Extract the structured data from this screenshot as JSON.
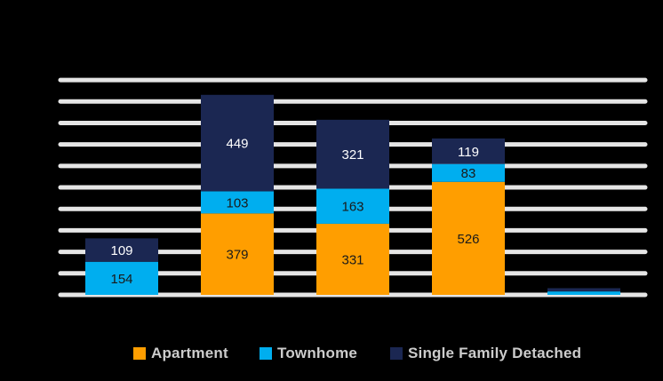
{
  "chart_data": {
    "type": "bar",
    "stacked": true,
    "categories": [
      "",
      "",
      "",
      "",
      ""
    ],
    "series": [
      {
        "name": "Apartment",
        "color": "#FF9E00",
        "values": [
          0,
          379,
          331,
          526,
          0
        ]
      },
      {
        "name": "Townhome",
        "color": "#00AEEF",
        "values": [
          154,
          103,
          163,
          83,
          16
        ]
      },
      {
        "name": "Single Family Detached",
        "color": "#1B2752",
        "values": [
          109,
          449,
          321,
          119,
          15
        ]
      }
    ],
    "data_labels": [
      [
        "",
        "379",
        "331",
        "526",
        ""
      ],
      [
        "154",
        "103",
        "163",
        "83",
        ""
      ],
      [
        "109",
        "449",
        "321",
        "119",
        ""
      ]
    ],
    "ylim": [
      0,
      1050
    ],
    "gridline_step": 100,
    "grid": true,
    "legend": "bottom",
    "gridline_color": "#E5E5E5"
  }
}
